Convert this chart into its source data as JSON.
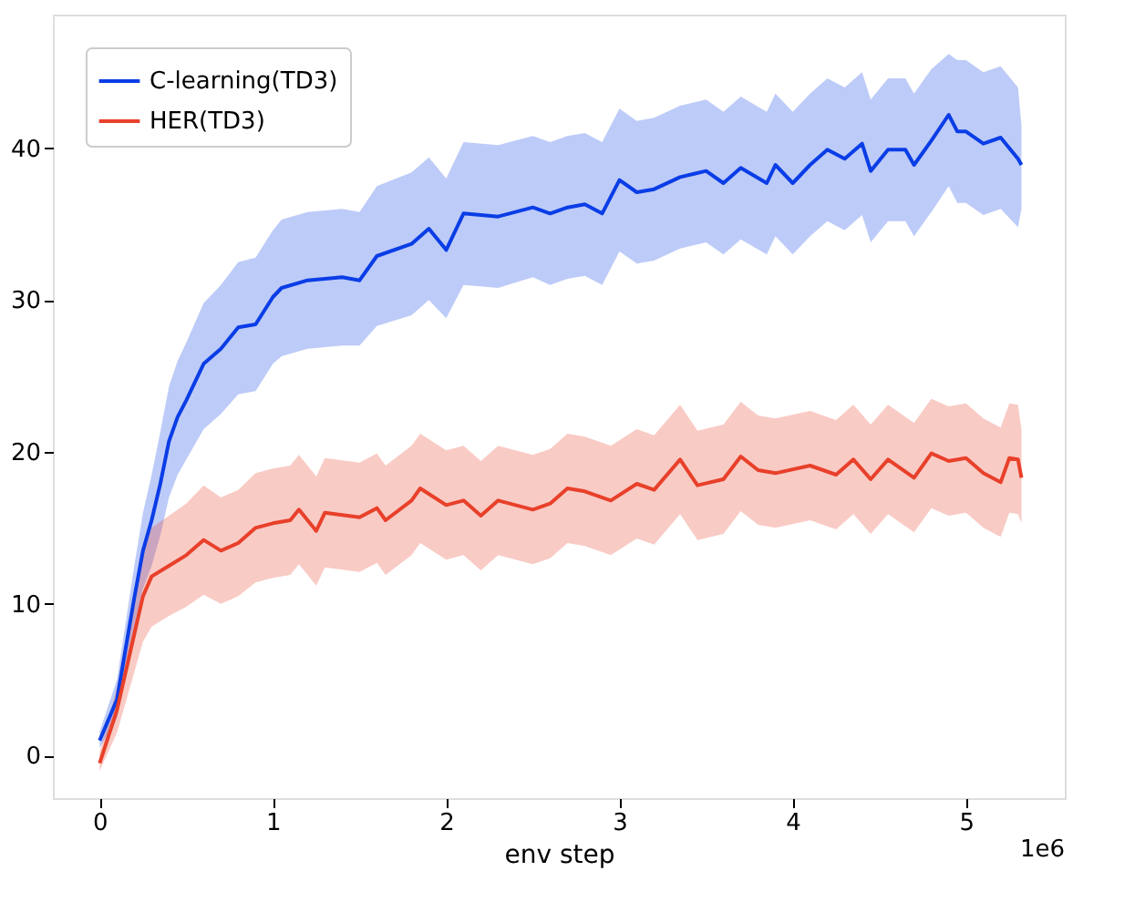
{
  "chart_data": {
    "type": "line",
    "xlabel": "env step",
    "xlim": [
      -0.27,
      5.57
    ],
    "ylim": [
      -2.8,
      48.8
    ],
    "xticks": [
      0,
      1,
      2,
      3,
      4,
      5
    ],
    "yticks": [
      0,
      10,
      20,
      30,
      40
    ],
    "grid": false,
    "legend": "top left",
    "line_style": "solid",
    "marker": "none",
    "annotations": [
      "1e6"
    ],
    "series": [
      {
        "name": "C-learning(TD3)",
        "color": "#0a3de6",
        "x": [
          0,
          0.1,
          0.2,
          0.25,
          0.3,
          0.35,
          0.4,
          0.45,
          0.5,
          0.6,
          0.7,
          0.8,
          0.9,
          1.0,
          1.05,
          1.2,
          1.4,
          1.5,
          1.6,
          1.8,
          1.9,
          2.0,
          2.1,
          2.3,
          2.5,
          2.6,
          2.7,
          2.8,
          2.9,
          3.0,
          3.1,
          3.2,
          3.35,
          3.5,
          3.6,
          3.7,
          3.85,
          3.9,
          4.0,
          4.1,
          4.2,
          4.3,
          4.4,
          4.45,
          4.55,
          4.65,
          4.7,
          4.8,
          4.9,
          4.95,
          5.0,
          5.1,
          5.2,
          5.3,
          5.32
        ],
        "values": [
          1.0,
          3.7,
          10.4,
          13.5,
          15.5,
          17.9,
          20.7,
          22.3,
          23.4,
          25.8,
          26.8,
          28.2,
          28.4,
          30.2,
          30.8,
          31.3,
          31.5,
          31.3,
          32.9,
          33.7,
          34.7,
          33.3,
          35.7,
          35.5,
          36.1,
          35.7,
          36.1,
          36.3,
          35.7,
          37.9,
          37.1,
          37.3,
          38.1,
          38.5,
          37.7,
          38.7,
          37.7,
          38.9,
          37.7,
          38.9,
          39.9,
          39.3,
          40.3,
          38.5,
          39.9,
          39.9,
          38.9,
          40.5,
          42.2,
          41.1,
          41.1,
          40.3,
          40.7,
          39.3,
          38.9
        ],
        "lower": [
          0.5,
          2.5,
          8.5,
          11.0,
          12.5,
          14.5,
          17.0,
          18.5,
          19.5,
          21.5,
          22.5,
          23.8,
          24.0,
          25.8,
          26.3,
          26.8,
          27.0,
          27.0,
          28.3,
          29.0,
          30.0,
          28.8,
          31.0,
          30.8,
          31.5,
          31.0,
          31.4,
          31.6,
          31.0,
          33.2,
          32.4,
          32.6,
          33.4,
          33.8,
          33.0,
          34.0,
          33.0,
          34.2,
          33.0,
          34.2,
          35.2,
          34.6,
          35.6,
          33.8,
          35.2,
          35.2,
          34.2,
          35.8,
          37.5,
          36.4,
          36.4,
          35.6,
          36.0,
          34.8,
          36.0
        ],
        "upper": [
          1.6,
          5.0,
          12.5,
          16.0,
          18.5,
          21.3,
          24.3,
          26.0,
          27.2,
          29.8,
          31.0,
          32.5,
          32.8,
          34.6,
          35.3,
          35.8,
          36.0,
          35.8,
          37.5,
          38.4,
          39.4,
          38.0,
          40.4,
          40.2,
          40.8,
          40.4,
          40.8,
          41.0,
          40.4,
          42.6,
          41.8,
          42.0,
          42.8,
          43.2,
          42.4,
          43.4,
          42.4,
          43.6,
          42.4,
          43.6,
          44.6,
          44.0,
          45.0,
          43.2,
          44.6,
          44.6,
          43.6,
          45.2,
          46.2,
          45.8,
          45.8,
          45.0,
          45.4,
          44.0,
          41.5
        ]
      },
      {
        "name": "HER(TD3)",
        "color": "#e8402a",
        "x": [
          0,
          0.1,
          0.2,
          0.25,
          0.3,
          0.4,
          0.5,
          0.6,
          0.7,
          0.8,
          0.9,
          1.0,
          1.1,
          1.15,
          1.25,
          1.3,
          1.5,
          1.6,
          1.65,
          1.8,
          1.85,
          2.0,
          2.1,
          2.2,
          2.3,
          2.4,
          2.5,
          2.6,
          2.7,
          2.8,
          2.95,
          3.1,
          3.2,
          3.35,
          3.45,
          3.6,
          3.7,
          3.8,
          3.9,
          4.1,
          4.25,
          4.35,
          4.45,
          4.55,
          4.7,
          4.8,
          4.9,
          5.0,
          5.1,
          5.2,
          5.25,
          5.3,
          5.32
        ],
        "values": [
          -0.5,
          3.0,
          8.0,
          10.5,
          11.8,
          12.5,
          13.2,
          14.2,
          13.5,
          14.0,
          15.0,
          15.3,
          15.5,
          16.2,
          14.8,
          16.0,
          15.7,
          16.3,
          15.5,
          16.8,
          17.6,
          16.5,
          16.8,
          15.8,
          16.8,
          16.5,
          16.2,
          16.6,
          17.6,
          17.4,
          16.8,
          17.9,
          17.5,
          19.5,
          17.8,
          18.2,
          19.7,
          18.8,
          18.6,
          19.1,
          18.5,
          19.5,
          18.2,
          19.5,
          18.3,
          19.9,
          19.4,
          19.6,
          18.6,
          18.0,
          19.6,
          19.5,
          18.3
        ],
        "lower": [
          -1.0,
          1.5,
          5.5,
          7.5,
          8.5,
          9.2,
          9.8,
          10.6,
          10.0,
          10.5,
          11.4,
          11.7,
          11.9,
          12.6,
          11.2,
          12.4,
          12.1,
          12.7,
          11.9,
          13.2,
          14.0,
          12.9,
          13.2,
          12.2,
          13.2,
          12.9,
          12.6,
          13.0,
          14.0,
          13.8,
          13.2,
          14.3,
          13.9,
          15.9,
          14.2,
          14.6,
          16.1,
          15.2,
          15.0,
          15.5,
          14.9,
          15.9,
          14.6,
          15.9,
          14.7,
          16.3,
          15.8,
          16.0,
          15.0,
          14.4,
          16.0,
          15.9,
          15.3
        ],
        "upper": [
          0.2,
          4.5,
          10.5,
          13.5,
          15.0,
          15.8,
          16.6,
          17.8,
          17.0,
          17.5,
          18.6,
          18.9,
          19.1,
          19.8,
          18.4,
          19.6,
          19.3,
          19.9,
          19.1,
          20.4,
          21.2,
          20.1,
          20.4,
          19.4,
          20.4,
          20.1,
          19.8,
          20.2,
          21.2,
          21.0,
          20.4,
          21.5,
          21.1,
          23.1,
          21.4,
          21.8,
          23.3,
          22.4,
          22.2,
          22.7,
          22.1,
          23.1,
          21.8,
          23.1,
          21.9,
          23.5,
          23.0,
          23.2,
          22.2,
          21.6,
          23.2,
          23.1,
          21.5
        ]
      }
    ]
  }
}
